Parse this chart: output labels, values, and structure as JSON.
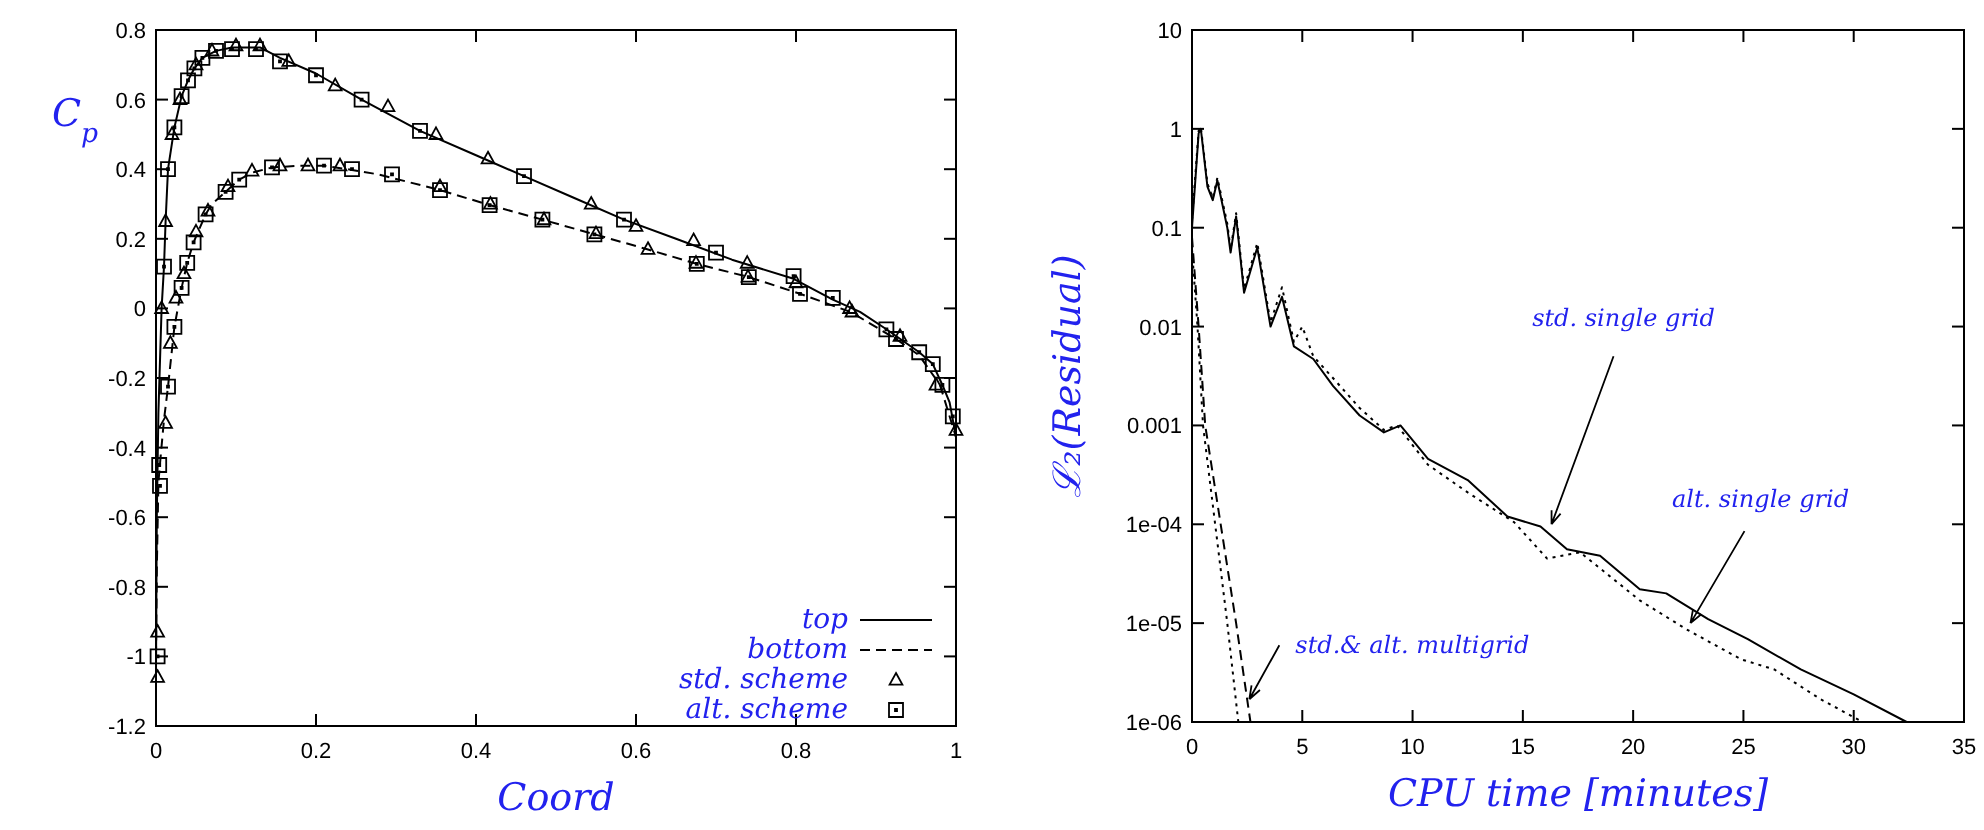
{
  "chart_data": [
    {
      "type": "line",
      "xlabel": "Coord",
      "ylabel": "C$_{p}$",
      "xlim": [
        0,
        1
      ],
      "ylim": [
        -1.2,
        0.8
      ],
      "xticks": [
        0,
        0.2,
        0.4,
        0.6,
        0.8,
        1
      ],
      "yticks": [
        -1.2,
        -1,
        -0.8,
        -0.6,
        -0.4,
        -0.2,
        0,
        0.2,
        0.4,
        0.6,
        0.8
      ],
      "grid": false,
      "legend": "bottom right",
      "series": [
        {
          "name": "top",
          "color": "#000000",
          "line_style": "solid",
          "x": [
            0,
            0.001,
            0.003,
            0.007,
            0.01,
            0.012,
            0.015,
            0.023,
            0.032,
            0.04,
            0.048,
            0.058,
            0.075,
            0.095,
            0.13,
            0.155,
            0.2,
            0.257,
            0.33,
            0.4,
            0.46,
            0.52,
            0.585,
            0.65,
            0.72,
            0.797,
            0.846,
            0.88,
            0.913,
            0.954,
            0.971,
            0.983,
            0.992,
            1.0
          ],
          "values": [
            -1.05,
            -0.6,
            -0.3,
            0.0,
            0.12,
            0.25,
            0.4,
            0.52,
            0.61,
            0.655,
            0.69,
            0.72,
            0.74,
            0.75,
            0.75,
            0.72,
            0.675,
            0.6,
            0.51,
            0.44,
            0.38,
            0.32,
            0.255,
            0.2,
            0.14,
            0.085,
            0.025,
            -0.01,
            -0.06,
            -0.126,
            -0.16,
            -0.22,
            -0.27,
            -0.37
          ]
        },
        {
          "name": "bottom",
          "color": "#000000",
          "line_style": "dashed",
          "x": [
            0,
            0.001,
            0.003,
            0.006,
            0.01,
            0.015,
            0.023,
            0.032,
            0.039,
            0.047,
            0.062,
            0.07,
            0.087,
            0.104,
            0.12,
            0.145,
            0.178,
            0.21,
            0.245,
            0.278,
            0.355,
            0.417,
            0.483,
            0.548,
            0.614,
            0.676,
            0.741,
            0.805,
            0.869,
            0.925,
            0.954,
            0.98,
            1.0
          ],
          "values": [
            -1.0,
            -0.75,
            -0.5,
            -0.42,
            -0.32,
            -0.225,
            -0.053,
            0.059,
            0.131,
            0.19,
            0.27,
            0.3,
            0.335,
            0.37,
            0.39,
            0.405,
            0.41,
            0.41,
            0.398,
            0.385,
            0.34,
            0.297,
            0.255,
            0.213,
            0.17,
            0.128,
            0.09,
            0.042,
            -0.011,
            -0.088,
            -0.135,
            -0.22,
            -0.37
          ]
        },
        {
          "name": "std. scheme",
          "type": "scatter",
          "color": "#000000",
          "marker": "triangle",
          "x": [
            0.002,
            0.002,
            0.007,
            0.012,
            0.02,
            0.03,
            0.05,
            0.07,
            0.1,
            0.13,
            0.166,
            0.224,
            0.29,
            0.35,
            0.415,
            0.544,
            0.6,
            0.672,
            0.739,
            0.8,
            0.867,
            0.93,
            0.975,
            1.0,
            0.012,
            0.018,
            0.025,
            0.035,
            0.05,
            0.065,
            0.09,
            0.12,
            0.155,
            0.19,
            0.23,
            0.355,
            0.418,
            0.485,
            0.55,
            0.615,
            0.675,
            0.74,
            0.87
          ],
          "values": [
            -0.93,
            -1.06,
            0.0,
            0.25,
            0.5,
            0.6,
            0.7,
            0.74,
            0.755,
            0.755,
            0.71,
            0.64,
            0.58,
            0.5,
            0.43,
            0.3,
            0.236,
            0.195,
            0.13,
            0.074,
            0.0,
            -0.08,
            -0.22,
            -0.35,
            -0.33,
            -0.1,
            0.03,
            0.1,
            0.22,
            0.28,
            0.35,
            0.395,
            0.41,
            0.41,
            0.41,
            0.35,
            0.3,
            0.255,
            0.215,
            0.17,
            0.13,
            0.09,
            -0.01
          ]
        },
        {
          "name": "alt. scheme",
          "type": "scatter",
          "color": "#000000",
          "marker": "square",
          "x": [
            0.002,
            0.004,
            0.01,
            0.015,
            0.023,
            0.032,
            0.04,
            0.048,
            0.058,
            0.075,
            0.095,
            0.125,
            0.155,
            0.2,
            0.257,
            0.33,
            0.46,
            0.585,
            0.7,
            0.797,
            0.846,
            0.913,
            0.954,
            0.971,
            0.983,
            0.996,
            0.005,
            0.015,
            0.023,
            0.032,
            0.039,
            0.047,
            0.062,
            0.087,
            0.104,
            0.145,
            0.21,
            0.245,
            0.295,
            0.355,
            0.417,
            0.483,
            0.548,
            0.676,
            0.741,
            0.805,
            0.925
          ],
          "values": [
            -1.0,
            -0.45,
            0.12,
            0.4,
            0.52,
            0.61,
            0.655,
            0.69,
            0.72,
            0.74,
            0.745,
            0.745,
            0.71,
            0.67,
            0.6,
            0.51,
            0.38,
            0.255,
            0.16,
            0.093,
            0.03,
            -0.06,
            -0.126,
            -0.16,
            -0.22,
            -0.31,
            -0.51,
            -0.225,
            -0.053,
            0.059,
            0.131,
            0.19,
            0.27,
            0.335,
            0.37,
            0.405,
            0.41,
            0.4,
            0.385,
            0.34,
            0.297,
            0.255,
            0.213,
            0.128,
            0.09,
            0.042,
            -0.088
          ]
        }
      ]
    },
    {
      "type": "line",
      "xlabel": "CPU time [minutes]",
      "ylabel": "ℒ₂(Residual)",
      "log": "y",
      "xlim": [
        0,
        35
      ],
      "ylim": [
        1e-06,
        10
      ],
      "xticks": [
        0,
        5,
        10,
        15,
        20,
        25,
        30,
        35
      ],
      "yticks": [
        10,
        1,
        0.1,
        0.01,
        0.001,
        {
          "value": 0.0001,
          "label": "1e-04"
        },
        {
          "value": 1e-05,
          "label": "1e-05"
        },
        {
          "value": 1e-06,
          "label": "1e-06"
        }
      ],
      "grid": false,
      "legend": false,
      "annotations": [
        {
          "text": "std. single grid",
          "x": 16.3,
          "y": 0.0001
        },
        {
          "text": "alt. single grid",
          "x": 22.6,
          "y": 1e-05
        },
        {
          "text": "std.& alt. multigrid",
          "x": 2.6,
          "y": 1.7e-06
        }
      ],
      "series": [
        {
          "color": "#000000",
          "line_style": "solid",
          "x": [
            0,
            0.3,
            0.4,
            0.7,
            0.94,
            1.15,
            1.6,
            1.75,
            2.0,
            2.36,
            2.96,
            3.56,
            4.08,
            4.62,
            5.5,
            6.4,
            7.6,
            8.7,
            9.45,
            10.7,
            12.5,
            14.3,
            15.8,
            17.0,
            18.5,
            20.3,
            21.5,
            23.4,
            25.2,
            27.6,
            30.0,
            32.4
          ],
          "values": [
            0.1,
            0.9,
            1.0,
            0.26,
            0.19,
            0.3,
            0.1,
            0.056,
            0.13,
            0.022,
            0.063,
            0.01,
            0.02,
            0.0063,
            0.0047,
            0.0025,
            0.00126,
            0.00085,
            0.001,
            0.00046,
            0.00028,
            0.00012,
            9.5e-05,
            5.6e-05,
            4.8e-05,
            2.2e-05,
            2e-05,
            1.1e-05,
            6.9e-06,
            3.4e-06,
            1.9e-06,
            1e-06
          ]
        },
        {
          "color": "#000000",
          "line_style": "dotted",
          "x": [
            0,
            0.3,
            0.4,
            0.7,
            0.94,
            1.15,
            1.6,
            1.75,
            2.0,
            2.36,
            2.96,
            3.56,
            4.08,
            4.62,
            5.0,
            5.5,
            6.4,
            7.6,
            8.7,
            9.3,
            10.7,
            12.5,
            14.6,
            16.1,
            17.6,
            20.3,
            22.4,
            24.9,
            26.4,
            28.5,
            30.4
          ],
          "values": [
            0.12,
            0.95,
            1.05,
            0.28,
            0.2,
            0.32,
            0.11,
            0.06,
            0.14,
            0.024,
            0.07,
            0.011,
            0.025,
            0.007,
            0.01,
            0.005,
            0.003,
            0.0015,
            0.0009,
            0.001,
            0.0004,
            0.00021,
            0.000105,
            4.5e-05,
            5.2e-05,
            1.7e-05,
            8.7e-06,
            4.3e-06,
            3.4e-06,
            1.7e-06,
            1e-06
          ]
        },
        {
          "color": "#000000",
          "line_style": "dashed",
          "x": [
            0,
            0.3,
            0.6,
            1.3,
            2.0,
            2.65
          ],
          "values": [
            0.08,
            0.01,
            0.001,
            0.0001,
            1e-05,
            1e-06
          ]
        },
        {
          "color": "#000000",
          "line_style": "dotted",
          "x": [
            0,
            0.25,
            0.5,
            1.05,
            1.6,
            2.1
          ],
          "values": [
            0.06,
            0.01,
            0.001,
            0.0001,
            1e-05,
            1e-06
          ]
        }
      ]
    }
  ]
}
